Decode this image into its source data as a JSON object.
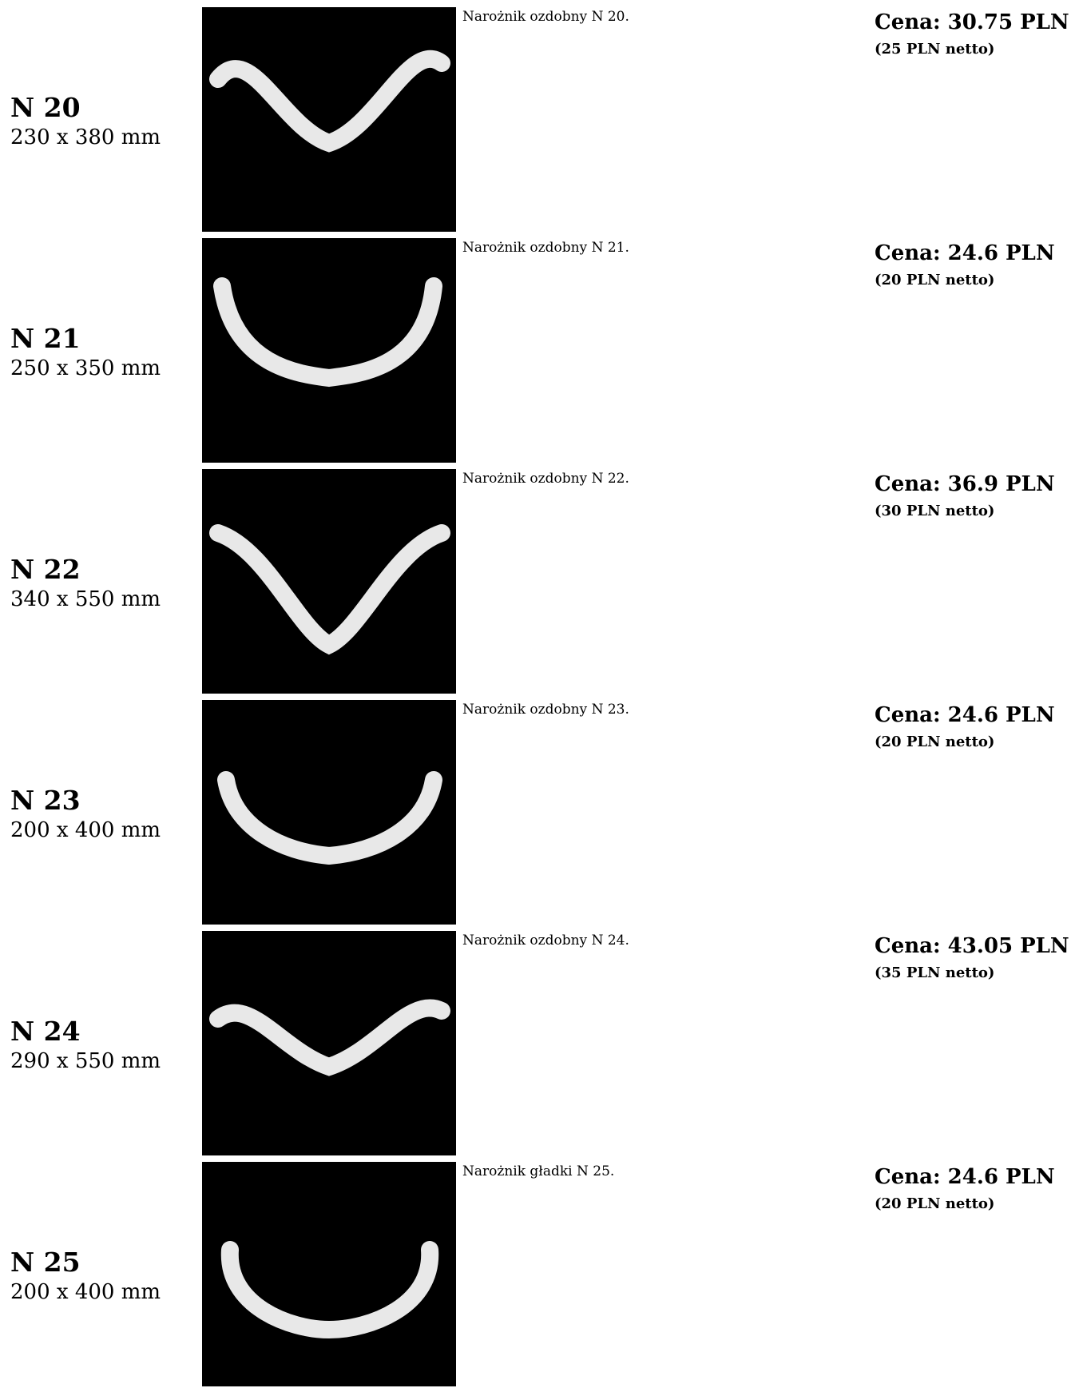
{
  "items": [
    {
      "code": "N 20",
      "size": "230 x 380 mm",
      "description": "Narożnik ozdobny N 20.",
      "price": "Cena: 30.75 PLN",
      "net": "(25 PLN netto)"
    },
    {
      "code": "N 21",
      "size": "250 x 350 mm",
      "description": "Narożnik ozdobny N 21.",
      "price": "Cena: 24.6 PLN",
      "net": "(20 PLN netto)"
    },
    {
      "code": "N 22",
      "size": "340 x 550 mm",
      "description": "Narożnik ozdobny N 22.",
      "price": "Cena: 36.9 PLN",
      "net": "(30 PLN netto)"
    },
    {
      "code": "N 23",
      "size": "200 x 400 mm",
      "description": "Narożnik ozdobny N 23.",
      "price": "Cena: 24.6 PLN",
      "net": "(20 PLN netto)"
    },
    {
      "code": "N 24",
      "size": "290 x 550 mm",
      "description": "Narożnik ozdobny N 24.",
      "price": "Cena: 43.05 PLN",
      "net": "(35 PLN netto)"
    },
    {
      "code": "N 25",
      "size": "200 x 400 mm",
      "description": "Narożnik gładki N 25.",
      "price": "Cena: 24.6 PLN",
      "net": "(20 PLN netto)"
    }
  ]
}
